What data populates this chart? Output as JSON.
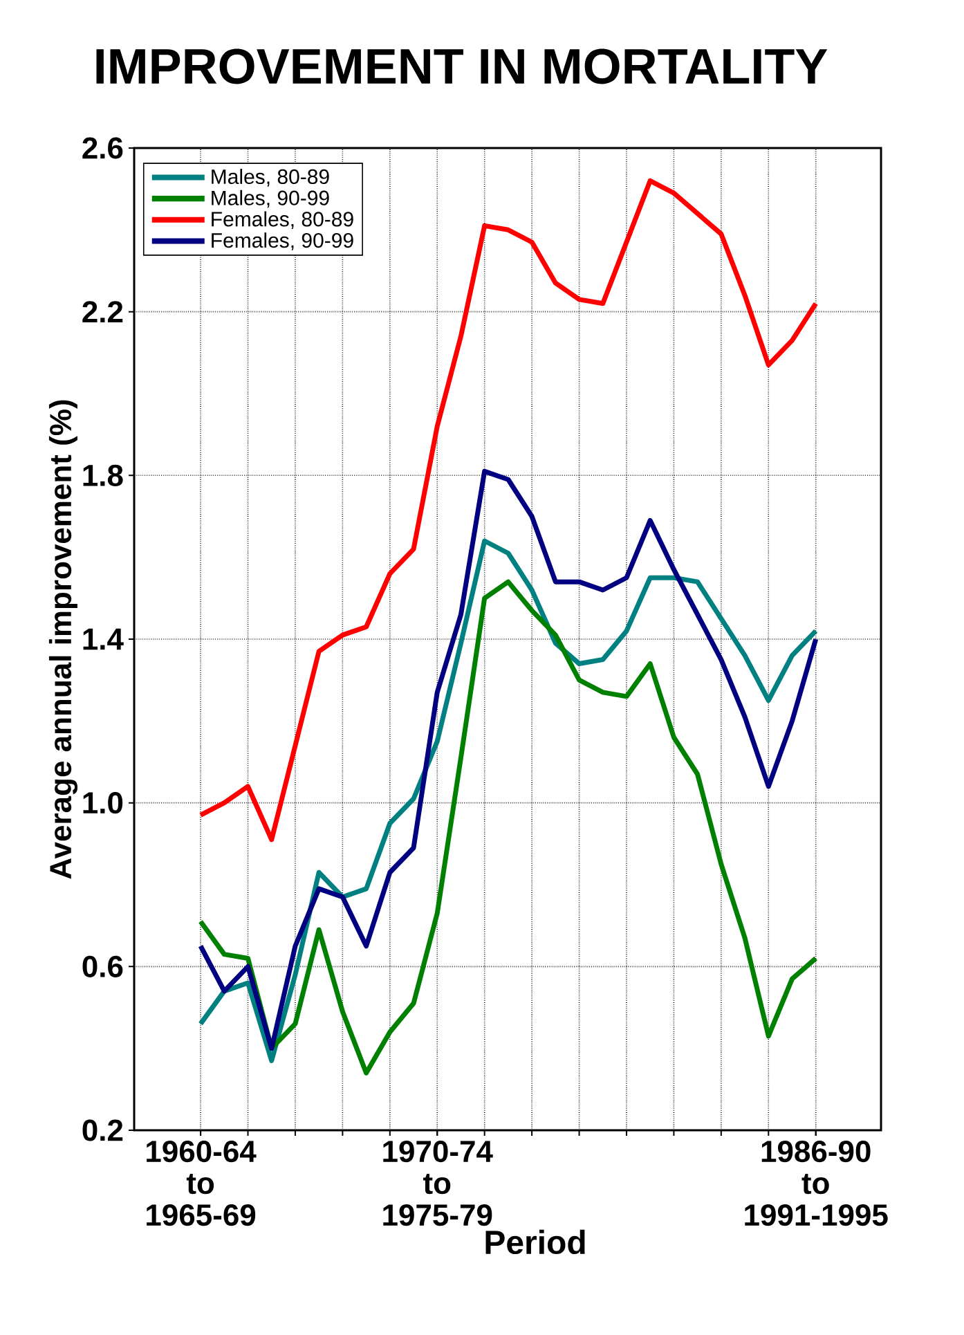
{
  "chart_data": {
    "type": "line",
    "title": "IMPROVEMENT IN MORTALITY",
    "xlabel": "Period",
    "ylabel": "Average annual improvement (%)",
    "categories": [
      "1960-64 to 1965-69",
      null,
      null,
      null,
      null,
      null,
      null,
      null,
      null,
      null,
      "1970-74 to 1975-79",
      null,
      null,
      null,
      null,
      null,
      null,
      null,
      null,
      null,
      null,
      null,
      null,
      null,
      null,
      null,
      "1986-90 to 1991-1995"
    ],
    "series": [
      {
        "name": "Males, 80-89",
        "color": "#008080",
        "values": [
          0.46,
          0.54,
          0.56,
          0.37,
          0.58,
          0.83,
          0.77,
          0.79,
          0.95,
          1.01,
          1.15,
          1.39,
          1.64,
          1.61,
          1.52,
          1.39,
          1.34,
          1.35,
          1.42,
          1.55,
          1.55,
          1.54,
          1.45,
          1.36,
          1.25,
          1.36,
          1.42
        ]
      },
      {
        "name": "Males, 90-99",
        "color": "#008000",
        "values": [
          0.71,
          0.63,
          0.62,
          0.4,
          0.46,
          0.69,
          0.49,
          0.34,
          0.44,
          0.51,
          0.73,
          1.11,
          1.5,
          1.54,
          1.47,
          1.41,
          1.3,
          1.27,
          1.26,
          1.34,
          1.16,
          1.07,
          0.85,
          0.67,
          0.43,
          0.57,
          0.62
        ]
      },
      {
        "name": "Females, 80-89",
        "color": "#ff0000",
        "values": [
          0.97,
          1.0,
          1.04,
          0.91,
          1.14,
          1.37,
          1.41,
          1.43,
          1.56,
          1.62,
          1.92,
          2.14,
          2.41,
          2.4,
          2.37,
          2.27,
          2.23,
          2.22,
          2.37,
          2.52,
          2.49,
          2.44,
          2.39,
          2.24,
          2.07,
          2.13,
          2.22
        ]
      },
      {
        "name": "Females, 90-99",
        "color": "#000080",
        "values": [
          0.65,
          0.54,
          0.6,
          0.4,
          0.65,
          0.79,
          0.77,
          0.65,
          0.83,
          0.89,
          1.27,
          1.46,
          1.81,
          1.79,
          1.7,
          1.54,
          1.54,
          1.52,
          1.55,
          1.69,
          1.57,
          1.46,
          1.35,
          1.21,
          1.04,
          1.2,
          1.4
        ]
      }
    ],
    "ylim": [
      0.2,
      2.6
    ],
    "yticks": [
      0.2,
      0.6,
      {
        "value": 1.0,
        "label": "1.0"
      },
      1.4,
      1.8,
      2.2,
      2.6
    ],
    "grid": true,
    "legend": "top left",
    "marker": "none",
    "line_style": "solid"
  }
}
